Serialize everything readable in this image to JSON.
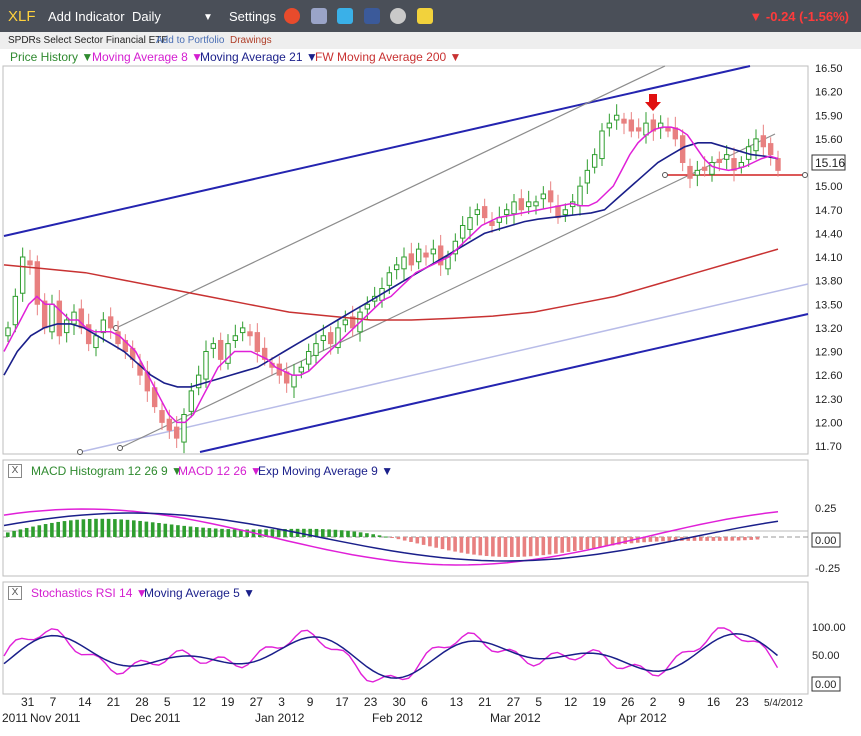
{
  "toolbar": {
    "symbol": "XLF",
    "add_indicator": "Add Indicator",
    "period": "Daily",
    "period_caret": "▼",
    "settings": "Settings",
    "change_text": "-0.24 (-1.56%)",
    "change_arrow": "▼",
    "icons": [
      "alarm-clock-icon",
      "document-icon",
      "twitter-icon",
      "facebook-icon",
      "people-icon",
      "note-icon"
    ]
  },
  "subbar": {
    "name": "SPDRs Select Sector Financial ETF",
    "add_to_portfolio": "Add to Portfolio",
    "drawings": "Drawings"
  },
  "legend": {
    "price_history": "Price History ▼",
    "ma8": "Moving Average 8 ▼",
    "ma21": "Moving Average 21 ▼",
    "ma200": "FW Moving Average 200 ▼"
  },
  "macd_head": {
    "close": "X",
    "hist": "MACD Histogram 12 26 9 ▼",
    "macd": "MACD 12 26 ▼",
    "ema": "Exp Moving Average 9 ▼"
  },
  "stoch_head": {
    "close": "X",
    "rsi": "Stochastics RSI 14 ▼",
    "ma5": "Moving Average 5 ▼"
  },
  "colors": {
    "up": "#2f9e2f",
    "down": "#e88080",
    "ma8": "#e020d8",
    "ma21": "#1a1f8a",
    "ma200": "#c83232",
    "trend_blue": "#2424b0",
    "trend_gray": "#8c8c8c",
    "trend_light": "#b8bce8",
    "support_red": "#d02020",
    "arrow_red": "#e01010"
  },
  "chart_data": [
    {
      "type": "candlestick",
      "title": "XLF",
      "ylim": [
        11.7,
        16.5
      ],
      "y_ticks": [
        "16.50",
        "16.20",
        "15.90",
        "15.60",
        "15.30",
        "15.00",
        "14.70",
        "14.40",
        "14.10",
        "13.80",
        "13.50",
        "13.20",
        "12.90",
        "12.60",
        "12.30",
        "12.00",
        "11.70"
      ],
      "last_price": "15.16",
      "x_tick_labels": [
        "31",
        "7",
        "14",
        "21",
        "28",
        "5",
        "12",
        "19",
        "27",
        "3",
        "9",
        "17",
        "23",
        "30",
        "6",
        "13",
        "21",
        "27",
        "5",
        "12",
        "19",
        "26",
        "2",
        "9",
        "16",
        "23",
        "5/4/2012"
      ],
      "x_month_labels": [
        "Nov 2011",
        "Dec 2011",
        "Jan 2012",
        "Feb 2012",
        "Mar 2012",
        "Apr 2012"
      ],
      "x_year_label": "2011",
      "close": [
        13.2,
        13.6,
        14.1,
        14.0,
        13.5,
        13.2,
        13.5,
        13.1,
        13.3,
        13.4,
        13.2,
        13.0,
        13.1,
        13.3,
        13.2,
        13.0,
        12.9,
        12.8,
        12.6,
        12.4,
        12.2,
        12.0,
        11.9,
        11.8,
        12.1,
        12.4,
        12.6,
        12.9,
        13.0,
        12.8,
        13.0,
        13.1,
        13.2,
        13.1,
        12.9,
        12.8,
        12.7,
        12.6,
        12.5,
        12.6,
        12.7,
        12.9,
        13.0,
        13.1,
        13.0,
        13.2,
        13.3,
        13.2,
        13.4,
        13.5,
        13.6,
        13.7,
        13.9,
        14.0,
        14.1,
        14.0,
        14.2,
        14.1,
        14.2,
        14.0,
        14.1,
        14.3,
        14.5,
        14.6,
        14.7,
        14.6,
        14.5,
        14.6,
        14.7,
        14.8,
        14.7,
        14.8,
        14.8,
        14.9,
        14.8,
        14.6,
        14.7,
        14.8,
        15.0,
        15.2,
        15.4,
        15.7,
        15.8,
        15.9,
        15.8,
        15.7,
        15.7,
        15.8,
        15.7,
        15.8,
        15.7,
        15.6,
        15.3,
        15.1,
        15.2,
        15.2,
        15.3,
        15.3,
        15.4,
        15.2,
        15.3,
        15.5,
        15.6,
        15.5,
        15.4,
        15.2
      ],
      "ma8": [
        12.9,
        13.1,
        13.3,
        13.5,
        13.6,
        13.5,
        13.5,
        13.4,
        13.3,
        13.3,
        13.2,
        13.15,
        13.15,
        13.15,
        13.1,
        13.0,
        12.9,
        12.7,
        12.5,
        12.3,
        12.1,
        12.0,
        12.0,
        12.1,
        12.3,
        12.5,
        12.7,
        12.8,
        12.9,
        12.9,
        12.9,
        12.85,
        12.8,
        12.7,
        12.65,
        12.6,
        12.6,
        12.65,
        12.75,
        12.85,
        12.95,
        13.05,
        13.15,
        13.25,
        13.35,
        13.45,
        13.55,
        13.6,
        13.7,
        13.8,
        13.9,
        13.95,
        14.0,
        14.05,
        14.1,
        14.2,
        14.3,
        14.4,
        14.5,
        14.55,
        14.6,
        14.62,
        14.64,
        14.66,
        14.68,
        14.7,
        14.72,
        14.74,
        14.76,
        14.78,
        14.75,
        14.75,
        14.8,
        14.9,
        15.0,
        15.2,
        15.4,
        15.55,
        15.65,
        15.72,
        15.75,
        15.75,
        15.72,
        15.65,
        15.5,
        15.35,
        15.25,
        15.22,
        15.2,
        15.22,
        15.25,
        15.3,
        15.35,
        15.38,
        15.35
      ],
      "ma21": [
        12.6,
        12.9,
        13.1,
        13.2,
        13.25,
        13.25,
        13.2,
        13.1,
        13.0,
        12.9,
        12.75,
        12.6,
        12.5,
        12.45,
        12.45,
        12.5,
        12.55,
        12.6,
        12.65,
        12.7,
        12.8,
        12.9,
        13.0,
        13.1,
        13.2,
        13.3,
        13.4,
        13.5,
        13.6,
        13.7,
        13.8,
        13.9,
        14.0,
        14.1,
        14.2,
        14.3,
        14.4,
        14.45,
        14.5,
        14.55,
        14.58,
        14.6,
        14.62,
        14.64,
        14.66,
        14.7,
        14.85,
        15.0,
        15.15,
        15.3,
        15.4,
        15.5,
        15.55,
        15.55,
        15.5,
        15.45,
        15.4,
        15.38,
        15.35
      ],
      "ma200": [
        14.0,
        13.95,
        13.9,
        13.8,
        13.7,
        13.6,
        13.5,
        13.4,
        13.35,
        13.3,
        13.3,
        13.32,
        13.35,
        13.4,
        13.5,
        13.6,
        13.75,
        13.9,
        14.05,
        14.2
      ],
      "macd_y_ticks": [
        "0.25",
        "-0.25"
      ],
      "macd_last": "0.00",
      "stoch_y_ticks": [
        "100.00",
        "50.00"
      ],
      "stoch_last": "0.00"
    }
  ]
}
